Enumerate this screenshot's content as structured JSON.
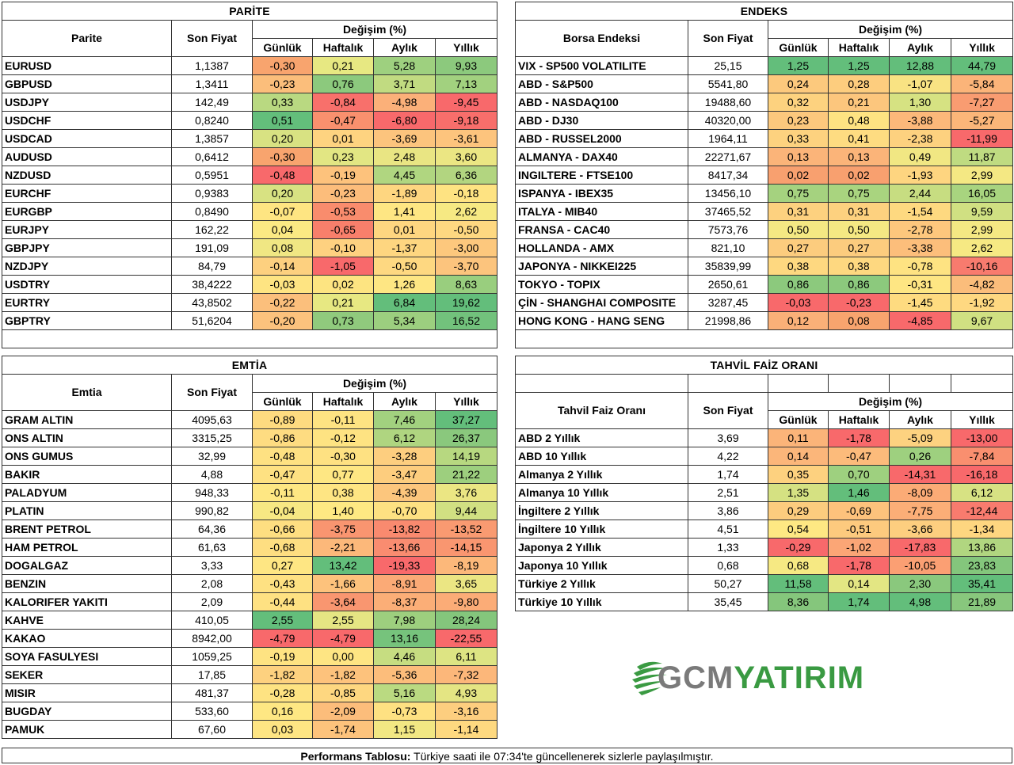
{
  "parite": {
    "title": "PARİTE",
    "name_header": "Parite",
    "price_header": "Son Fiyat",
    "change_header": "Değişim (%)",
    "sub": [
      "Günlük",
      "Haftalık",
      "Aylık",
      "Yıllık"
    ],
    "rows": [
      {
        "name": "EURUSD",
        "price": "1,1387",
        "vals": [
          "-0,30",
          "0,21",
          "5,28",
          "9,93"
        ],
        "colors": [
          "#f8a46e",
          "#e7e882",
          "#9ed07f",
          "#8cc97d"
        ]
      },
      {
        "name": "GBPUSD",
        "price": "1,3411",
        "vals": [
          "-0,23",
          "0,76",
          "3,71",
          "7,13"
        ],
        "colors": [
          "#fbbe7b",
          "#8cc97d",
          "#c1db81",
          "#a2d17f"
        ]
      },
      {
        "name": "USDJPY",
        "price": "142,49",
        "vals": [
          "0,33",
          "-0,84",
          "-4,98",
          "-9,45"
        ],
        "colors": [
          "#b9d981",
          "#f8706b",
          "#fbb079",
          "#f8696b"
        ]
      },
      {
        "name": "USDCHF",
        "price": "0,8240",
        "vals": [
          "0,51",
          "-0,47",
          "-6,80",
          "-9,18"
        ],
        "colors": [
          "#63be7b",
          "#f9906e",
          "#f8696b",
          "#f86e6b"
        ]
      },
      {
        "name": "USDCAD",
        "price": "1,3857",
        "vals": [
          "0,20",
          "0,01",
          "-3,69",
          "-3,61"
        ],
        "colors": [
          "#d8e282",
          "#fed380",
          "#fcc47d",
          "#fdc47d"
        ]
      },
      {
        "name": "AUDUSD",
        "price": "0,6412",
        "vals": [
          "-0,30",
          "0,23",
          "2,48",
          "3,60"
        ],
        "colors": [
          "#f8a46e",
          "#e2e683",
          "#e9e583",
          "#ebe683"
        ]
      },
      {
        "name": "NZDUSD",
        "price": "0,5951",
        "vals": [
          "-0,48",
          "-0,19",
          "4,45",
          "6,36"
        ],
        "colors": [
          "#f8696b",
          "#fdc27c",
          "#b0d680",
          "#b2d580"
        ]
      },
      {
        "name": "EURCHF",
        "price": "0,9383",
        "vals": [
          "0,20",
          "-0,23",
          "-1,89",
          "-0,18"
        ],
        "colors": [
          "#d8e282",
          "#fcbd7b",
          "#fed680",
          "#fee382"
        ]
      },
      {
        "name": "EURGBP",
        "price": "0,8490",
        "vals": [
          "-0,07",
          "-0,53",
          "1,41",
          "2,62"
        ],
        "colors": [
          "#fee582",
          "#f98c6d",
          "#fee683",
          "#f6e983"
        ]
      },
      {
        "name": "EURJPY",
        "price": "162,22",
        "vals": [
          "0,04",
          "-0,65",
          "0,01",
          "-0,50"
        ],
        "colors": [
          "#fbe983",
          "#f87f6b",
          "#fed680",
          "#fed881"
        ]
      },
      {
        "name": "GBPJPY",
        "price": "191,09",
        "vals": [
          "0,08",
          "-0,10",
          "-1,37",
          "-3,00"
        ],
        "colors": [
          "#f0e783",
          "#fed180",
          "#fed680",
          "#fdc87d"
        ]
      },
      {
        "name": "NZDJPY",
        "price": "84,79",
        "vals": [
          "-0,14",
          "-1,05",
          "-0,50",
          "-3,70"
        ],
        "colors": [
          "#fdd07f",
          "#f8696b",
          "#fed881",
          "#fcc47d"
        ]
      },
      {
        "name": "USDTRY",
        "price": "38,4222",
        "vals": [
          "-0,03",
          "0,02",
          "1,26",
          "8,63"
        ],
        "colors": [
          "#fee482",
          "#fde481",
          "#fee683",
          "#99ce7e"
        ]
      },
      {
        "name": "EURTRY",
        "price": "43,8502",
        "vals": [
          "-0,22",
          "0,21",
          "6,84",
          "19,62"
        ],
        "colors": [
          "#fbbf7c",
          "#e7e882",
          "#63be7b",
          "#63be7b"
        ]
      },
      {
        "name": "GBPTRY",
        "price": "51,6204",
        "vals": [
          "-0,20",
          "0,73",
          "5,34",
          "16,52"
        ],
        "colors": [
          "#fcc27d",
          "#90ca7d",
          "#9ccf7f",
          "#72c27c"
        ]
      }
    ]
  },
  "endeks": {
    "title": "ENDEKS",
    "name_header": "Borsa Endeksi",
    "price_header": "Son Fiyat",
    "change_header": "Değişim (%)",
    "sub": [
      "Günlük",
      "Haftalık",
      "Aylık",
      "Yıllık"
    ],
    "rows": [
      {
        "name": "VIX  - SP500 VOLATILITE",
        "price": "25,15",
        "vals": [
          "1,25",
          "1,25",
          "12,88",
          "44,79"
        ],
        "colors": [
          "#63be7b",
          "#63be7b",
          "#63be7b",
          "#63be7b"
        ]
      },
      {
        "name": "ABD - S&P500",
        "price": "5541,80",
        "vals": [
          "0,24",
          "0,28",
          "-1,07",
          "-5,84"
        ],
        "colors": [
          "#fcc97d",
          "#fdcd7e",
          "#f9e383",
          "#fbb479"
        ]
      },
      {
        "name": "ABD - NASDAQ100",
        "price": "19488,60",
        "vals": [
          "0,32",
          "0,21",
          "1,30",
          "-7,27"
        ],
        "colors": [
          "#fdd27f",
          "#fcc67d",
          "#d6e282",
          "#f99c71"
        ]
      },
      {
        "name": "ABD - DJ30",
        "price": "40320,00",
        "vals": [
          "0,23",
          "0,48",
          "-3,88",
          "-5,27"
        ],
        "colors": [
          "#fcc87d",
          "#fee382",
          "#fcb87a",
          "#fbb679"
        ]
      },
      {
        "name": "ABD - RUSSEL2000",
        "price": "1964,11",
        "vals": [
          "0,33",
          "0,41",
          "-2,38",
          "-11,99"
        ],
        "colors": [
          "#fdd27f",
          "#fedc81",
          "#fdd17f",
          "#f8696b"
        ]
      },
      {
        "name": "ALMANYA - DAX40",
        "price": "22271,67",
        "vals": [
          "0,13",
          "0,13",
          "0,49",
          "11,87"
        ],
        "colors": [
          "#fbb479",
          "#fbb479",
          "#f1e783",
          "#bfdb81"
        ]
      },
      {
        "name": "INGILTERE - FTSE100",
        "price": "8417,34",
        "vals": [
          "0,02",
          "0,02",
          "-1,93",
          "2,99"
        ],
        "colors": [
          "#f8a06f",
          "#f8a06f",
          "#fed580",
          "#f4e883"
        ]
      },
      {
        "name": "ISPANYA - IBEX35",
        "price": "13456,10",
        "vals": [
          "0,75",
          "0,75",
          "2,44",
          "16,05"
        ],
        "colors": [
          "#a5d27f",
          "#a9d47f",
          "#c7dd81",
          "#a8d47f"
        ]
      },
      {
        "name": "ITALYA - MIB40",
        "price": "37465,52",
        "vals": [
          "0,31",
          "0,31",
          "-1,54",
          "9,59"
        ],
        "colors": [
          "#fdd17f",
          "#fdd17f",
          "#fed980",
          "#d0e082"
        ]
      },
      {
        "name": "FRANSA - CAC40",
        "price": "7573,76",
        "vals": [
          "0,50",
          "0,50",
          "-2,78",
          "2,99"
        ],
        "colors": [
          "#f4e883",
          "#f4e883",
          "#fdc77d",
          "#f4e883"
        ]
      },
      {
        "name": "HOLLANDA - AMX",
        "price": "821,10",
        "vals": [
          "0,27",
          "0,27",
          "-3,38",
          "2,62"
        ],
        "colors": [
          "#fccc7e",
          "#fccc7e",
          "#fcbe7b",
          "#f6e983"
        ]
      },
      {
        "name": "JAPONYA - NIKKEI225",
        "price": "35839,99",
        "vals": [
          "0,38",
          "0,38",
          "-0,78",
          "-10,16"
        ],
        "colors": [
          "#fed880",
          "#fed880",
          "#fee382",
          "#f87b6e"
        ]
      },
      {
        "name": "TOKYO - TOPIX",
        "price": "2650,61",
        "vals": [
          "0,86",
          "0,86",
          "-0,31",
          "-4,82"
        ],
        "colors": [
          "#8cc97d",
          "#8cc97d",
          "#fee683",
          "#fbbd7b"
        ]
      },
      {
        "name": "ÇİN - SHANGHAI COMPOSITE",
        "price": "3287,45",
        "vals": [
          "-0,03",
          "-0,23",
          "-1,45",
          "-1,92"
        ],
        "colors": [
          "#f8696b",
          "#f8696b",
          "#fedb80",
          "#fed881"
        ]
      },
      {
        "name": "HONG KONG - HANG SENG",
        "price": "21998,86",
        "vals": [
          "0,12",
          "0,08",
          "-4,85",
          "9,67"
        ],
        "colors": [
          "#fab078",
          "#f8a46e",
          "#f8696b",
          "#d0e082"
        ]
      }
    ]
  },
  "emtia": {
    "title": "EMTİA",
    "name_header": "Emtia",
    "price_header": "Son Fiyat",
    "change_header": "Değişim (%)",
    "sub": [
      "Günlük",
      "Haftalık",
      "Aylık",
      "Yıllık"
    ],
    "rows": [
      {
        "name": "GRAM ALTIN",
        "price": "4095,63",
        "vals": [
          "-0,89",
          "-0,11",
          "7,46",
          "37,27"
        ],
        "colors": [
          "#fedb80",
          "#fee382",
          "#a2d17f",
          "#63be7b"
        ]
      },
      {
        "name": "ONS ALTIN",
        "price": "3315,25",
        "vals": [
          "-0,86",
          "-0,12",
          "6,12",
          "26,37"
        ],
        "colors": [
          "#fedc81",
          "#fee382",
          "#afd580",
          "#8ac87d"
        ]
      },
      {
        "name": "ONS GUMUS",
        "price": "32,99",
        "vals": [
          "-0,48",
          "-0,30",
          "-3,28",
          "14,19"
        ],
        "colors": [
          "#fee182",
          "#fee182",
          "#fdce7f",
          "#b7d880"
        ]
      },
      {
        "name": "BAKIR",
        "price": "4,88",
        "vals": [
          "-0,47",
          "0,77",
          "-3,47",
          "21,22"
        ],
        "colors": [
          "#fee182",
          "#fee783",
          "#fdcd7e",
          "#9dcf7e"
        ]
      },
      {
        "name": "PALADYUM",
        "price": "948,33",
        "vals": [
          "-0,11",
          "0,38",
          "-4,39",
          "3,76"
        ],
        "colors": [
          "#fee783",
          "#fee583",
          "#fcc67d",
          "#ebe683"
        ]
      },
      {
        "name": "PLATIN",
        "price": "990,82",
        "vals": [
          "-0,04",
          "1,40",
          "-0,70",
          "9,44"
        ],
        "colors": [
          "#f7e883",
          "#fee983",
          "#fee182",
          "#d1e082"
        ]
      },
      {
        "name": "BRENT PETROL",
        "price": "64,36",
        "vals": [
          "-0,66",
          "-3,75",
          "-13,82",
          "-13,52"
        ],
        "colors": [
          "#fede81",
          "#f99570",
          "#f98a6f",
          "#f99a71"
        ]
      },
      {
        "name": "HAM PETROL",
        "price": "61,63",
        "vals": [
          "-0,68",
          "-2,21",
          "-13,66",
          "-14,15"
        ],
        "colors": [
          "#fede81",
          "#fcb87a",
          "#f98c70",
          "#f99670"
        ]
      },
      {
        "name": "DOGALGAZ",
        "price": "3,33",
        "vals": [
          "0,27",
          "13,42",
          "-19,33",
          "-8,19"
        ],
        "colors": [
          "#fee683",
          "#63be7b",
          "#f8696b",
          "#fcb87a"
        ]
      },
      {
        "name": "BENZIN",
        "price": "2,08",
        "vals": [
          "-0,43",
          "-1,66",
          "-8,91",
          "3,65"
        ],
        "colors": [
          "#fee182",
          "#fdc27c",
          "#fbaa76",
          "#ebe683"
        ]
      },
      {
        "name": "KALORIFER YAKITI",
        "price": "2,09",
        "vals": [
          "-0,44",
          "-3,64",
          "-8,37",
          "-9,80"
        ],
        "colors": [
          "#fee182",
          "#f99670",
          "#fbae77",
          "#fbac77"
        ]
      },
      {
        "name": "KAHVE",
        "price": "410,05",
        "vals": [
          "2,55",
          "2,55",
          "7,98",
          "28,24"
        ],
        "colors": [
          "#63be7b",
          "#e5e583",
          "#9dcf7e",
          "#84c67c"
        ]
      },
      {
        "name": "KAKAO",
        "price": "8942,00",
        "vals": [
          "-4,79",
          "-4,79",
          "13,16",
          "-22,55"
        ],
        "colors": [
          "#f8696b",
          "#f8696b",
          "#76c37c",
          "#f8696b"
        ]
      },
      {
        "name": "SOYA FASULYESI",
        "price": "1059,25",
        "vals": [
          "-0,19",
          "0,00",
          "4,46",
          "6,11"
        ],
        "colors": [
          "#fee382",
          "#fee583",
          "#c6dd81",
          "#dde483"
        ]
      },
      {
        "name": "SEKER",
        "price": "17,85",
        "vals": [
          "-1,82",
          "-1,82",
          "-5,36",
          "-7,32"
        ],
        "colors": [
          "#fdd17f",
          "#fdc27c",
          "#fcbd7b",
          "#fcb77a"
        ]
      },
      {
        "name": "MISIR",
        "price": "481,37",
        "vals": [
          "-0,28",
          "-0,85",
          "5,16",
          "4,93"
        ],
        "colors": [
          "#fee382",
          "#fed780",
          "#badA81",
          "#e4e583"
        ]
      },
      {
        "name": "BUGDAY",
        "price": "533,60",
        "vals": [
          "0,16",
          "-2,09",
          "-0,73",
          "-3,16"
        ],
        "colors": [
          "#fee783",
          "#fcbd7b",
          "#fee182",
          "#fdce7f"
        ]
      },
      {
        "name": "PAMUK",
        "price": "67,60",
        "vals": [
          "0,03",
          "-1,74",
          "1,15",
          "-1,14"
        ],
        "colors": [
          "#fee583",
          "#fdc37c",
          "#f2e783",
          "#fed980"
        ]
      }
    ]
  },
  "tahvil": {
    "title": "TAHVİL FAİZ ORANI",
    "name_header": "Tahvil Faiz Oranı",
    "price_header": "Son Fiyat",
    "change_header": "Değişim (%)",
    "sub": [
      "Günlük",
      "Haftalık",
      "Aylık",
      "Yıllık"
    ],
    "rows": [
      {
        "name": "ABD 2 Yıllık",
        "price": "3,69",
        "vals": [
          "0,11",
          "-1,78",
          "-5,09",
          "-13,00"
        ],
        "colors": [
          "#fbb479",
          "#f8696b",
          "#fdd280",
          "#f8696b"
        ]
      },
      {
        "name": "ABD 10 Yıllık",
        "price": "4,22",
        "vals": [
          "0,14",
          "-0,47",
          "0,26",
          "-7,84"
        ],
        "colors": [
          "#fbb67a",
          "#fcbb7b",
          "#9ed07f",
          "#f98f6f"
        ]
      },
      {
        "name": "Almanya 2 Yıllık",
        "price": "1,74",
        "vals": [
          "0,35",
          "0,70",
          "-14,31",
          "-16,18"
        ],
        "colors": [
          "#fdd17f",
          "#9ed07f",
          "#f8696b",
          "#f8696b"
        ]
      },
      {
        "name": "Almanya 10 Yıllık",
        "price": "2,51",
        "vals": [
          "1,35",
          "1,46",
          "-8,09",
          "6,12"
        ],
        "colors": [
          "#d5e182",
          "#63be7b",
          "#fbab76",
          "#d7e283"
        ]
      },
      {
        "name": "İngiltere 2 Yıllık",
        "price": "3,86",
        "vals": [
          "0,29",
          "-0,69",
          "-7,75",
          "-12,44"
        ],
        "colors": [
          "#fccc7e",
          "#fdc27c",
          "#fbae77",
          "#f87b6e"
        ]
      },
      {
        "name": "İngiltere 10 Yıllık",
        "price": "4,51",
        "vals": [
          "0,54",
          "-0,51",
          "-3,66",
          "-1,34"
        ],
        "colors": [
          "#fee883",
          "#fdca7e",
          "#fdce7f",
          "#fed680"
        ]
      },
      {
        "name": "Japonya 2 Yıllık",
        "price": "1,33",
        "vals": [
          "-0,29",
          "-1,02",
          "-17,83",
          "13,86"
        ],
        "colors": [
          "#f8696b",
          "#fba676",
          "#f8696b",
          "#b1d680"
        ]
      },
      {
        "name": "Japonya 10 Yıllık",
        "price": "0,68",
        "vals": [
          "0,68",
          "-1,78",
          "-10,05",
          "23,83"
        ],
        "colors": [
          "#f6e983",
          "#f8696b",
          "#fb9f73",
          "#84c67c"
        ]
      },
      {
        "name": "Türkiye 2 Yıllık",
        "price": "50,27",
        "vals": [
          "11,58",
          "0,14",
          "2,30",
          "35,41"
        ],
        "colors": [
          "#63be7b",
          "#e3e683",
          "#8ac87d",
          "#63be7b"
        ]
      },
      {
        "name": "Türkiye 10 Yıllık",
        "price": "35,45",
        "vals": [
          "8,36",
          "1,74",
          "4,98",
          "21,89"
        ],
        "colors": [
          "#85c67c",
          "#63be7b",
          "#63be7b",
          "#88c77d"
        ]
      }
    ]
  },
  "logo": {
    "part1": "GCM",
    "part2": "YATIRIM",
    "colors": {
      "gray": "#7a7a7a",
      "green": "#3a9a42"
    }
  },
  "footer": {
    "label": "Performans Tablosu:",
    "text": " Türkiye saati ile 07:34'te güncellenerek sizlerle paylaşılmıştır."
  }
}
